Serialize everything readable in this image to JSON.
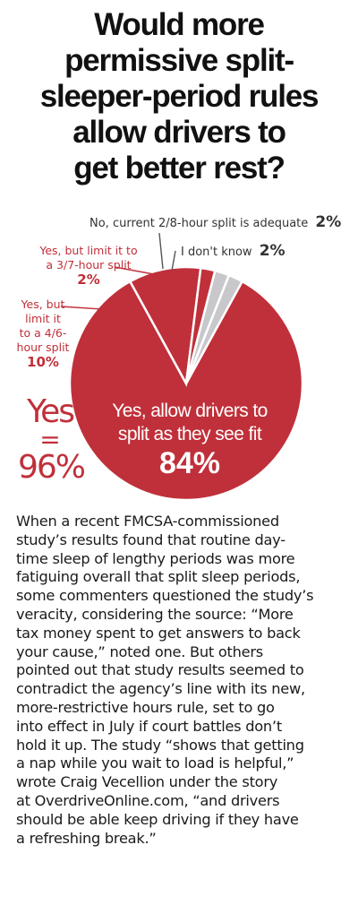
{
  "title_lines": [
    "Would more",
    "permissive split-",
    "sleeper-period rules",
    "allow drivers to",
    "get better rest?"
  ],
  "chart_data": {
    "type": "pie",
    "title": "Would more permissive split-sleeper-period rules allow drivers to get better rest?",
    "slices": [
      {
        "label": "Yes, allow drivers to split as they see fit",
        "value": 84,
        "value_label": "84%",
        "color": "#c0303a"
      },
      {
        "label": "Yes, but limit it to a 4/6-hour split",
        "value": 10,
        "value_label": "10%",
        "color": "#c0303a"
      },
      {
        "label": "Yes, but limit it to a 3/7-hour split",
        "value": 2,
        "value_label": "2%",
        "color": "#c0303a"
      },
      {
        "label": "No, current 2/8-hour split is adequate",
        "value": 2,
        "value_label": "2%",
        "color": "#c8c8cc"
      },
      {
        "label": "I don't know",
        "value": 2,
        "value_label": "2%",
        "color": "#c8c8cc"
      }
    ],
    "yes_total": {
      "label": "Yes",
      "equals": "=",
      "value": "96%"
    }
  },
  "labels": {
    "big_line1": "Yes, allow drivers to",
    "big_line2": "split as they see fit",
    "big_pct": "84%",
    "s46_line1": "Yes, but",
    "s46_line2": "limit it",
    "s46_line3": "to a 4/6-",
    "s46_line4": "hour split",
    "s46_pct": "10%",
    "s37_line1": "Yes, but limit it to",
    "s37_line2": "a 3/7-hour split",
    "s37_pct": "2%",
    "no_text": "No, current 2/8-hour split is adequate",
    "no_pct": "2%",
    "dk_text": "I don't know",
    "dk_pct": "2%"
  },
  "body_lines": [
    "When a recent FMCSA-commissioned",
    "study’s results found that routine day-",
    "time sleep of lengthy periods was more",
    "fatiguing overall that split sleep periods,",
    "some commenters questioned the study’s",
    "veracity, considering the source: “More",
    "tax money spent to get answers to back",
    "your cause,” noted one. But others",
    "pointed out that study results seemed to",
    "contradict the agency’s line with its new,",
    "more-restrictive hours rule, set to go",
    "into effect in July if court battles don’t",
    "hold it up. The study “shows that getting",
    "a nap while you wait to load is helpful,”",
    "wrote Craig Vecellion under the story",
    "at OverdriveOnline.com, “and drivers",
    "should be able keep driving if they have",
    "a refreshing break.”"
  ]
}
